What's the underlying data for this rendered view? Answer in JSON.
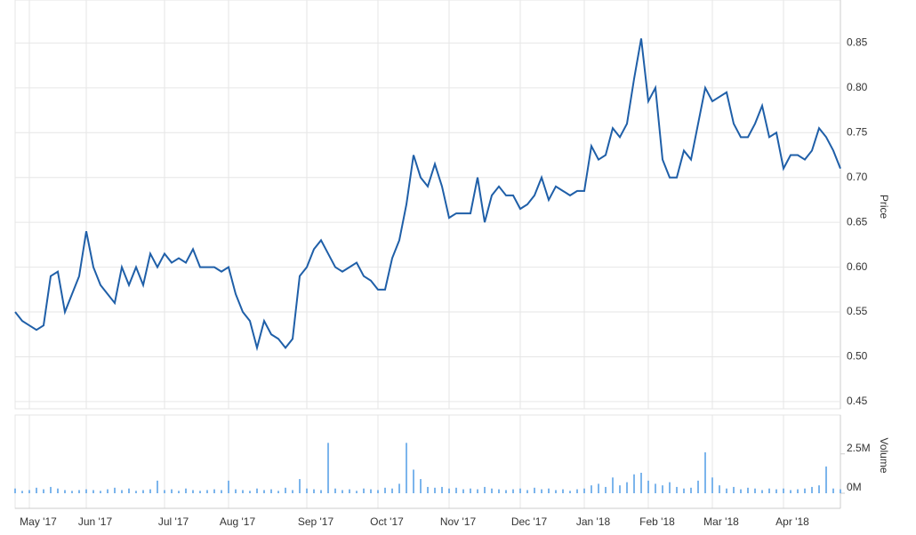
{
  "chart_data": [
    {
      "type": "line",
      "y_label": "Price",
      "color": "#1f5fa8",
      "categories": [
        null,
        null,
        "May '17",
        null,
        null,
        null,
        null,
        null,
        null,
        null,
        "Jun '17",
        null,
        null,
        null,
        null,
        null,
        null,
        null,
        null,
        null,
        null,
        "Jul '17",
        null,
        null,
        null,
        null,
        null,
        null,
        null,
        null,
        "Aug '17",
        null,
        null,
        null,
        null,
        null,
        null,
        null,
        null,
        null,
        null,
        "Sep '17",
        null,
        null,
        null,
        null,
        null,
        null,
        null,
        null,
        null,
        "Oct '17",
        null,
        null,
        null,
        null,
        null,
        null,
        null,
        null,
        null,
        "Nov '17",
        null,
        null,
        null,
        null,
        null,
        null,
        null,
        null,
        null,
        "Dec '17",
        null,
        null,
        null,
        null,
        null,
        null,
        null,
        null,
        "Jan '18",
        null,
        null,
        null,
        null,
        null,
        null,
        null,
        null,
        "Feb '18",
        null,
        null,
        null,
        null,
        null,
        null,
        null,
        null,
        "Mar '18",
        null,
        null,
        null,
        null,
        null,
        null,
        null,
        null,
        null,
        "Apr '18",
        null,
        null,
        null,
        null,
        null,
        null,
        null,
        null
      ],
      "values": [
        0.55,
        0.54,
        0.535,
        0.53,
        0.535,
        0.59,
        0.595,
        0.55,
        0.57,
        0.59,
        0.64,
        0.6,
        0.58,
        0.57,
        0.56,
        0.6,
        0.58,
        0.6,
        0.58,
        0.615,
        0.6,
        0.615,
        0.605,
        0.61,
        0.605,
        0.62,
        0.6,
        0.6,
        0.6,
        0.595,
        0.6,
        0.57,
        0.55,
        0.54,
        0.51,
        0.54,
        0.525,
        0.52,
        0.51,
        0.52,
        0.59,
        0.6,
        0.62,
        0.63,
        0.615,
        0.6,
        0.595,
        0.6,
        0.605,
        0.59,
        0.585,
        0.575,
        0.575,
        0.61,
        0.63,
        0.67,
        0.725,
        0.7,
        0.69,
        0.715,
        0.69,
        0.655,
        0.66,
        0.66,
        0.66,
        0.7,
        0.65,
        0.68,
        0.69,
        0.68,
        0.68,
        0.665,
        0.67,
        0.68,
        0.7,
        0.675,
        0.69,
        0.685,
        0.68,
        0.685,
        0.685,
        0.735,
        0.72,
        0.725,
        0.755,
        0.745,
        0.76,
        0.81,
        0.855,
        0.785,
        0.8,
        0.72,
        0.7,
        0.7,
        0.73,
        0.72,
        0.76,
        0.8,
        0.785,
        0.79,
        0.795,
        0.76,
        0.745,
        0.745,
        0.76,
        0.78,
        0.745,
        0.75,
        0.71,
        0.725,
        0.725,
        0.72,
        0.73,
        0.755,
        0.745,
        0.73,
        0.71
      ],
      "ylim": [
        0.442,
        0.893
      ],
      "yticks": [
        {
          "value": 0.45,
          "label": "0.45"
        },
        {
          "value": 0.5,
          "label": "0.50"
        },
        {
          "value": 0.55,
          "label": "0.55"
        },
        {
          "value": 0.6,
          "label": "0.60"
        },
        {
          "value": 0.65,
          "label": "0.65"
        },
        {
          "value": 0.7,
          "label": "0.70"
        },
        {
          "value": 0.75,
          "label": "0.75"
        },
        {
          "value": 0.8,
          "label": "0.80"
        },
        {
          "value": 0.85,
          "label": "0.85"
        }
      ]
    },
    {
      "type": "bar",
      "y_label": "Volume",
      "color": "#7cb5ec",
      "values": [
        300000,
        150000,
        200000,
        350000,
        250000,
        400000,
        300000,
        200000,
        150000,
        200000,
        250000,
        200000,
        150000,
        250000,
        350000,
        200000,
        300000,
        150000,
        200000,
        250000,
        800000,
        200000,
        250000,
        150000,
        300000,
        200000,
        150000,
        200000,
        250000,
        200000,
        800000,
        250000,
        200000,
        150000,
        300000,
        200000,
        250000,
        150000,
        350000,
        200000,
        900000,
        300000,
        250000,
        200000,
        3200000,
        300000,
        200000,
        250000,
        150000,
        300000,
        250000,
        200000,
        350000,
        300000,
        600000,
        3200000,
        1500000,
        900000,
        400000,
        350000,
        400000,
        300000,
        350000,
        250000,
        300000,
        250000,
        400000,
        300000,
        250000,
        200000,
        250000,
        300000,
        200000,
        350000,
        250000,
        300000,
        200000,
        250000,
        150000,
        250000,
        300000,
        500000,
        600000,
        400000,
        1000000,
        500000,
        700000,
        1200000,
        1300000,
        800000,
        600000,
        500000,
        700000,
        400000,
        300000,
        350000,
        800000,
        2600000,
        1000000,
        500000,
        300000,
        400000,
        250000,
        350000,
        300000,
        200000,
        300000,
        250000,
        300000,
        200000,
        250000,
        300000,
        400000,
        500000,
        1700000,
        300000,
        250000
      ],
      "ylim": [
        0,
        4800000
      ],
      "yticks": [
        {
          "value": 0,
          "label": "0M"
        },
        {
          "value": 2500000,
          "label": "2.5M"
        }
      ]
    }
  ]
}
